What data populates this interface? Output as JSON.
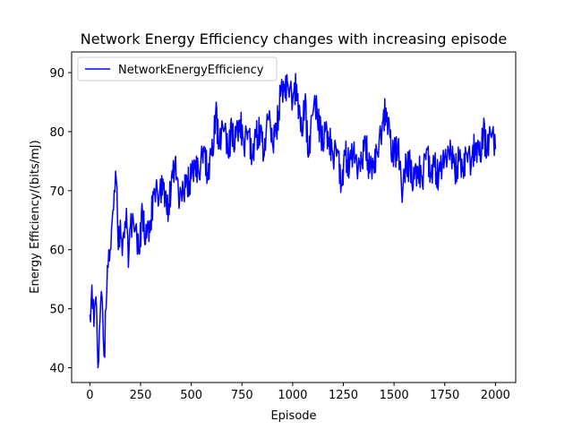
{
  "chart_data": {
    "type": "line",
    "title": "Network Energy Efficiency changes with increasing episode",
    "xlabel": "Episode",
    "ylabel": "Energy Efficiency/(bits/mJ)",
    "xlim": [
      -90,
      2100
    ],
    "ylim": [
      37.5,
      93.5
    ],
    "x_ticks": [
      0,
      250,
      500,
      750,
      1000,
      1250,
      1500,
      1750,
      2000
    ],
    "y_ticks": [
      40,
      50,
      60,
      70,
      80,
      90
    ],
    "grid": false,
    "legend_position": "top-left",
    "series_color": "#0000ff",
    "series": [
      {
        "name": "NetworkEnergyEfficiency",
        "anchors": [
          [
            0,
            49
          ],
          [
            10,
            54
          ],
          [
            20,
            47
          ],
          [
            30,
            52
          ],
          [
            40,
            40
          ],
          [
            50,
            48
          ],
          [
            60,
            52
          ],
          [
            70,
            42
          ],
          [
            80,
            50
          ],
          [
            90,
            57
          ],
          [
            100,
            60
          ],
          [
            110,
            65
          ],
          [
            120,
            70
          ],
          [
            130,
            72
          ],
          [
            140,
            60
          ],
          [
            150,
            65
          ],
          [
            160,
            59
          ],
          [
            170,
            62
          ],
          [
            180,
            67
          ],
          [
            190,
            57
          ],
          [
            200,
            64
          ],
          [
            220,
            63
          ],
          [
            240,
            60
          ],
          [
            260,
            66
          ],
          [
            280,
            62
          ],
          [
            300,
            65
          ],
          [
            320,
            70
          ],
          [
            340,
            68
          ],
          [
            360,
            72
          ],
          [
            380,
            66
          ],
          [
            400,
            70
          ],
          [
            420,
            75
          ],
          [
            440,
            67
          ],
          [
            460,
            70
          ],
          [
            480,
            71
          ],
          [
            500,
            72
          ],
          [
            520,
            75
          ],
          [
            540,
            72
          ],
          [
            560,
            77
          ],
          [
            580,
            73
          ],
          [
            600,
            76
          ],
          [
            620,
            83
          ],
          [
            640,
            78
          ],
          [
            660,
            80
          ],
          [
            680,
            77
          ],
          [
            700,
            80
          ],
          [
            720,
            79
          ],
          [
            740,
            82
          ],
          [
            760,
            77
          ],
          [
            780,
            80
          ],
          [
            800,
            76
          ],
          [
            820,
            79
          ],
          [
            840,
            80
          ],
          [
            860,
            76
          ],
          [
            880,
            82
          ],
          [
            900,
            78
          ],
          [
            920,
            80
          ],
          [
            940,
            86
          ],
          [
            960,
            88
          ],
          [
            980,
            87
          ],
          [
            1000,
            85
          ],
          [
            1020,
            88
          ],
          [
            1040,
            80
          ],
          [
            1060,
            85
          ],
          [
            1080,
            76
          ],
          [
            1100,
            83
          ],
          [
            1120,
            84
          ],
          [
            1140,
            79
          ],
          [
            1160,
            80
          ],
          [
            1180,
            79
          ],
          [
            1200,
            75
          ],
          [
            1220,
            77
          ],
          [
            1240,
            71
          ],
          [
            1260,
            76
          ],
          [
            1280,
            74
          ],
          [
            1300,
            77
          ],
          [
            1320,
            72
          ],
          [
            1340,
            75
          ],
          [
            1360,
            78
          ],
          [
            1380,
            73
          ],
          [
            1400,
            75
          ],
          [
            1420,
            76
          ],
          [
            1440,
            80
          ],
          [
            1460,
            84
          ],
          [
            1480,
            79
          ],
          [
            1500,
            76
          ],
          [
            1520,
            78
          ],
          [
            1540,
            68
          ],
          [
            1560,
            75
          ],
          [
            1580,
            74
          ],
          [
            1600,
            72
          ],
          [
            1620,
            74
          ],
          [
            1640,
            71
          ],
          [
            1660,
            77
          ],
          [
            1680,
            73
          ],
          [
            1700,
            74
          ],
          [
            1720,
            72
          ],
          [
            1740,
            75
          ],
          [
            1760,
            74
          ],
          [
            1780,
            77
          ],
          [
            1800,
            73
          ],
          [
            1820,
            75
          ],
          [
            1840,
            74
          ],
          [
            1860,
            76
          ],
          [
            1880,
            74
          ],
          [
            1900,
            78
          ],
          [
            1920,
            76
          ],
          [
            1940,
            80
          ],
          [
            1960,
            77
          ],
          [
            1980,
            79
          ],
          [
            2000,
            77
          ]
        ]
      }
    ]
  }
}
